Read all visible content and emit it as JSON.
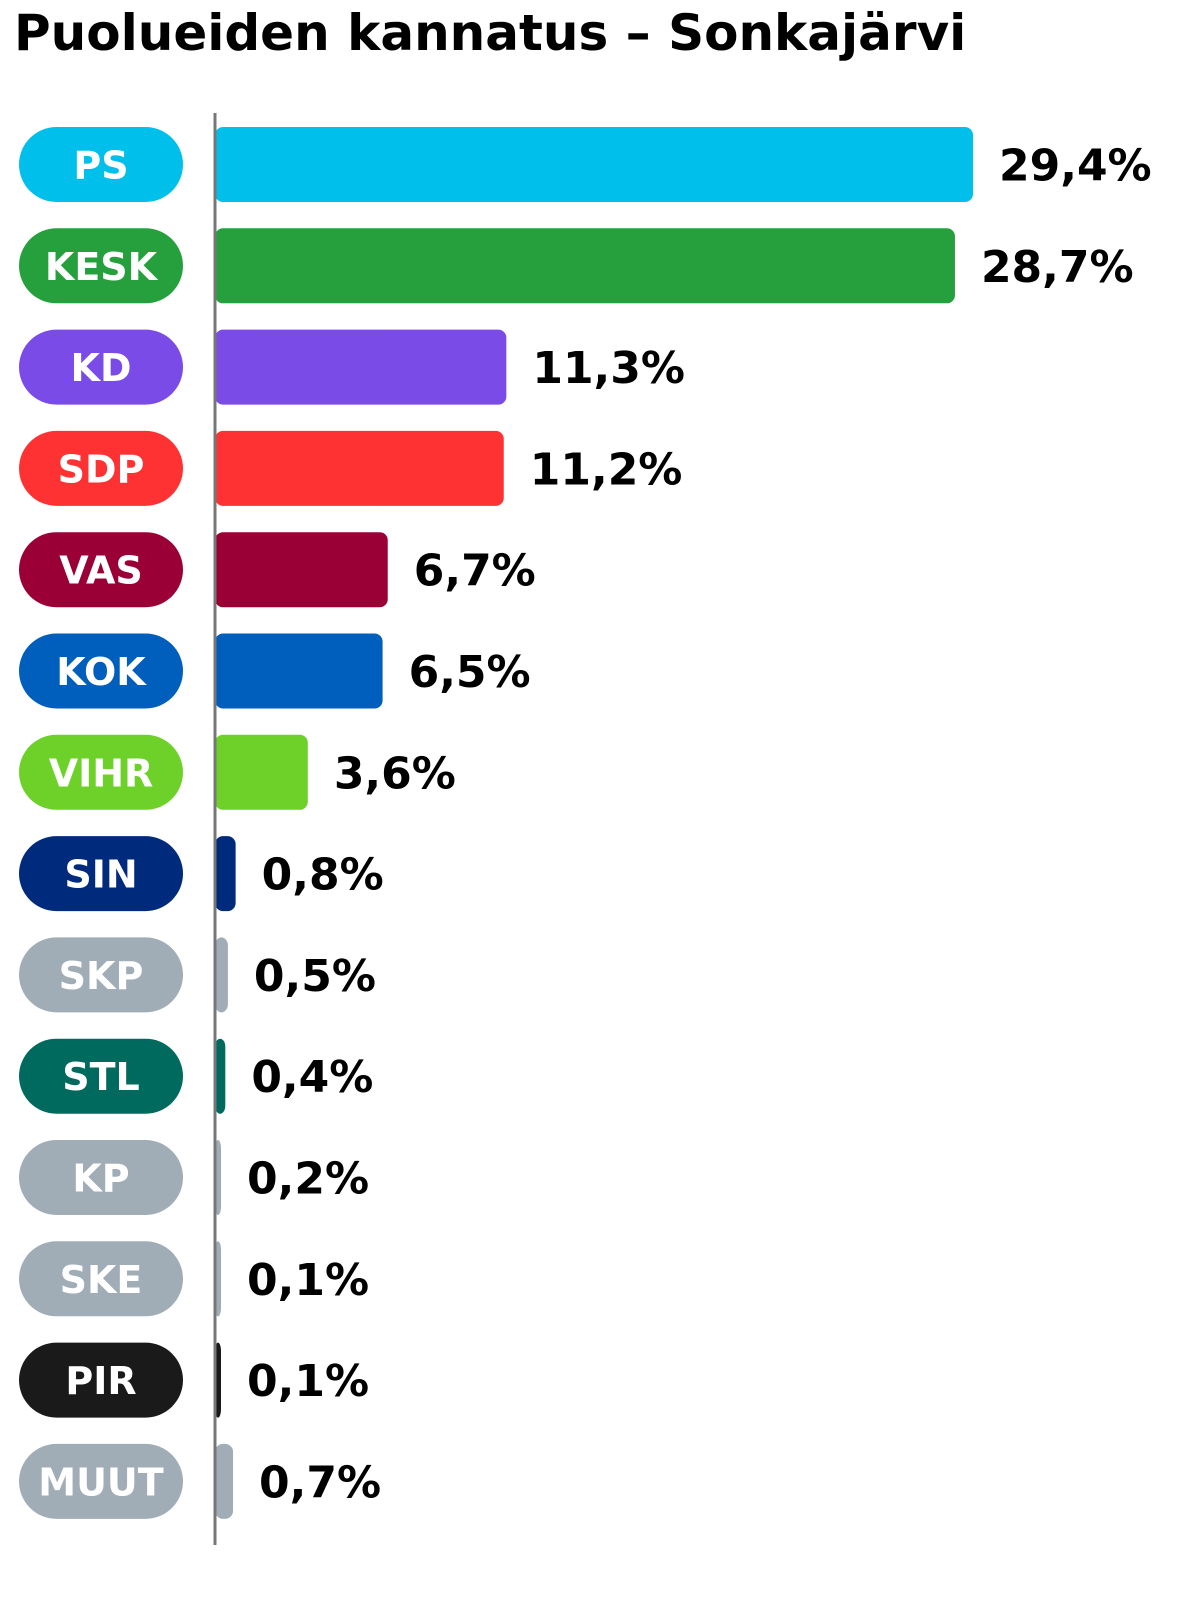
{
  "title": "Puolueiden kannatus – Sonkajärvi",
  "chart_data": {
    "type": "bar",
    "orientation": "horizontal",
    "title": "Puolueiden kannatus – Sonkajärvi",
    "xlabel": "",
    "ylabel": "",
    "xlim": [
      0,
      29.4
    ],
    "unit": "%",
    "categories": [
      "PS",
      "KESK",
      "KD",
      "SDP",
      "VAS",
      "KOK",
      "VIHR",
      "SIN",
      "SKP",
      "STL",
      "KP",
      "SKE",
      "PIR",
      "MUUT"
    ],
    "values": [
      29.4,
      28.7,
      11.3,
      11.2,
      6.7,
      6.5,
      3.6,
      0.8,
      0.5,
      0.4,
      0.2,
      0.1,
      0.1,
      0.7
    ],
    "value_labels": [
      "29,4%",
      "28,7%",
      "11,3%",
      "11,2%",
      "6,7%",
      "6,5%",
      "3,6%",
      "0,8%",
      "0,5%",
      "0,4%",
      "0,2%",
      "0,1%",
      "0,1%",
      "0,7%"
    ],
    "colors": [
      "#00c0eb",
      "#25a03d",
      "#7a4be6",
      "#ff3233",
      "#9a0036",
      "#005fbd",
      "#6dd12a",
      "#002a7c",
      "#a1adb6",
      "#006a5e",
      "#a1adb6",
      "#a1adb6",
      "#1a1a1a",
      "#a1adb6"
    ],
    "grid": false,
    "legend": "none"
  }
}
